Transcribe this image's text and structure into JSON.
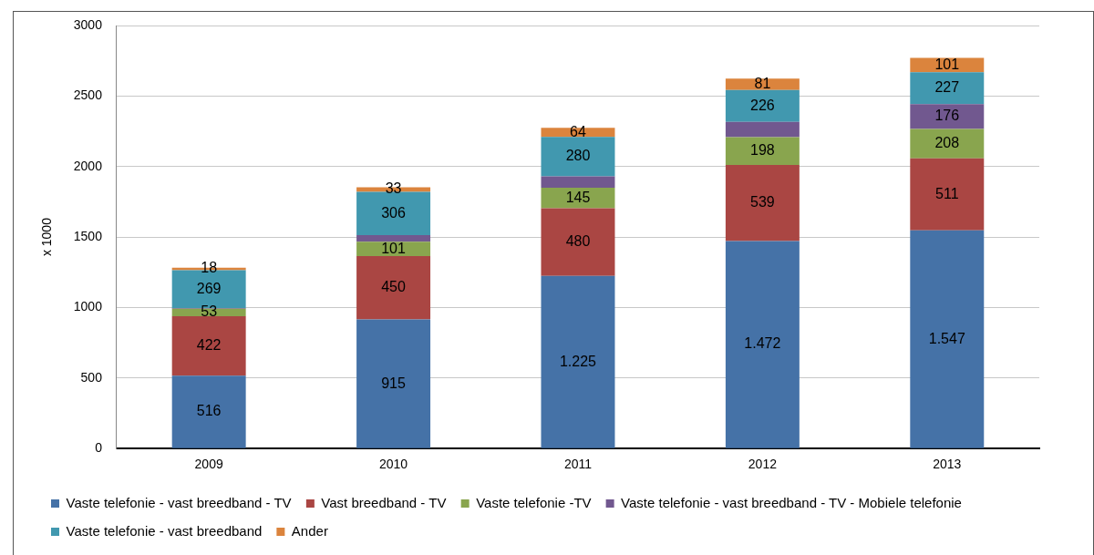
{
  "chart_data": {
    "type": "bar",
    "stacked": true,
    "ylabel": "x 1000",
    "categories": [
      "2009",
      "2010",
      "2011",
      "2012",
      "2013"
    ],
    "ylim": [
      0,
      3000
    ],
    "yticks": [
      0,
      500,
      1000,
      1500,
      2000,
      2500,
      3000
    ],
    "grid": "y",
    "legend": "bottom",
    "series": [
      {
        "name": "Vaste telefonie - vast breedband - TV",
        "color": "#4572a7",
        "values": [
          516,
          915,
          1225,
          1472,
          1547
        ],
        "value_labels": [
          "516",
          "915",
          "1.225",
          "1.472",
          "1.547"
        ]
      },
      {
        "name": "Vast breedband - TV",
        "color": "#aa4643",
        "values": [
          422,
          450,
          480,
          539,
          511
        ],
        "value_labels": [
          "422",
          "450",
          "480",
          "539",
          "511"
        ]
      },
      {
        "name": "Vaste telefonie -TV",
        "color": "#89a54e",
        "values": [
          53,
          101,
          145,
          198,
          208
        ],
        "value_labels": [
          "53",
          "101",
          "145",
          "198",
          "208"
        ]
      },
      {
        "name": "Vaste telefonie - vast breedband - TV - Mobiele telefonie",
        "color": "#71588f",
        "values": [
          5,
          48,
          80,
          107,
          176
        ],
        "value_labels": [
          null,
          null,
          null,
          null,
          "176"
        ]
      },
      {
        "name": "Vaste telefonie - vast breedband",
        "color": "#4198af",
        "values": [
          269,
          306,
          280,
          226,
          227
        ],
        "value_labels": [
          "269",
          "306",
          "280",
          "226",
          "227"
        ]
      },
      {
        "name": "Ander",
        "color": "#db843d",
        "values": [
          18,
          33,
          64,
          81,
          101
        ],
        "value_labels": [
          "18",
          "33",
          "64",
          "81",
          "101"
        ]
      }
    ]
  }
}
